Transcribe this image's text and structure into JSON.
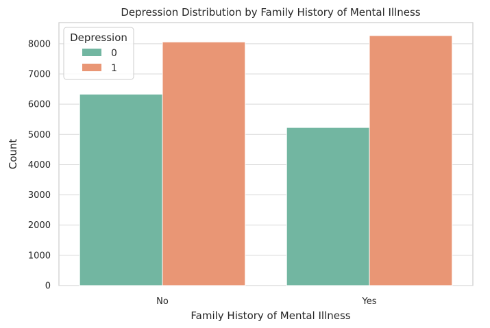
{
  "chart_data": {
    "type": "bar",
    "title": "Depression Distribution by Family History of Mental Illness",
    "xlabel": "Family History of Mental Illness",
    "ylabel": "Count",
    "categories": [
      "No",
      "Yes"
    ],
    "series": [
      {
        "name": "0",
        "values": [
          6330,
          5230
        ],
        "color": "#72b6a1"
      },
      {
        "name": "1",
        "values": [
          8060,
          8270
        ],
        "color": "#e99675"
      }
    ],
    "ylim": [
      0,
      8700
    ],
    "yticks": [
      0,
      1000,
      2000,
      3000,
      4000,
      5000,
      6000,
      7000,
      8000
    ],
    "ytick_labels": [
      "0",
      "1000",
      "2000",
      "3000",
      "4000",
      "5000",
      "6000",
      "7000",
      "8000"
    ],
    "grid": "horizontal",
    "legend": {
      "title": "Depression",
      "position": "top-left"
    }
  }
}
